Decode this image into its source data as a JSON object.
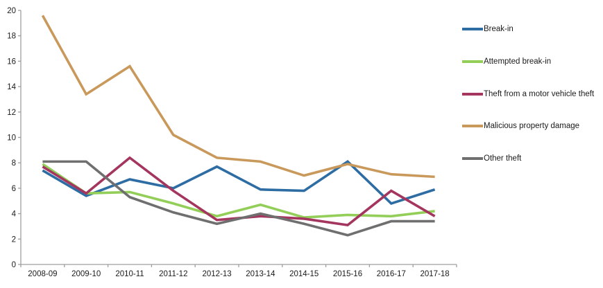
{
  "chart_data": {
    "type": "line",
    "title": "",
    "xlabel": "",
    "ylabel": "",
    "categories": [
      "2008-09",
      "2009-10",
      "2010-11",
      "2011-12",
      "2012-13",
      "2013-14",
      "2014-15",
      "2015-16",
      "2016-17",
      "2017-18"
    ],
    "series": [
      {
        "name": "Break-in",
        "color": "#2E6DA4",
        "values": [
          7.4,
          5.4,
          6.7,
          6.0,
          7.7,
          5.9,
          5.8,
          8.1,
          4.8,
          5.9
        ]
      },
      {
        "name": "Attempted break-in",
        "color": "#92CE58",
        "values": [
          7.9,
          5.6,
          5.7,
          4.8,
          3.8,
          4.7,
          3.7,
          3.9,
          3.8,
          4.2
        ]
      },
      {
        "name": "Theft from a motor vehicle theft",
        "color": "#A3355E",
        "values": [
          7.7,
          5.6,
          8.4,
          5.8,
          3.5,
          3.8,
          3.6,
          3.1,
          5.8,
          3.8
        ]
      },
      {
        "name": "Malicious property damage",
        "color": "#C9995B",
        "values": [
          19.6,
          13.4,
          15.6,
          10.2,
          8.4,
          8.1,
          7.0,
          7.9,
          7.1,
          6.9
        ]
      },
      {
        "name": "Other theft",
        "color": "#6F6F6F",
        "values": [
          8.1,
          8.1,
          5.3,
          4.1,
          3.2,
          4.0,
          3.2,
          2.3,
          3.4,
          3.4
        ]
      }
    ],
    "ylim": [
      0,
      20
    ],
    "ytick_step": 2,
    "grid": false,
    "legend_position": "right"
  },
  "style": {
    "axis_line_color": "#9E9E9E",
    "tick_color": "#9E9E9E",
    "axis_text_color": "#1A1A1A",
    "background": "#FFFFFF"
  }
}
